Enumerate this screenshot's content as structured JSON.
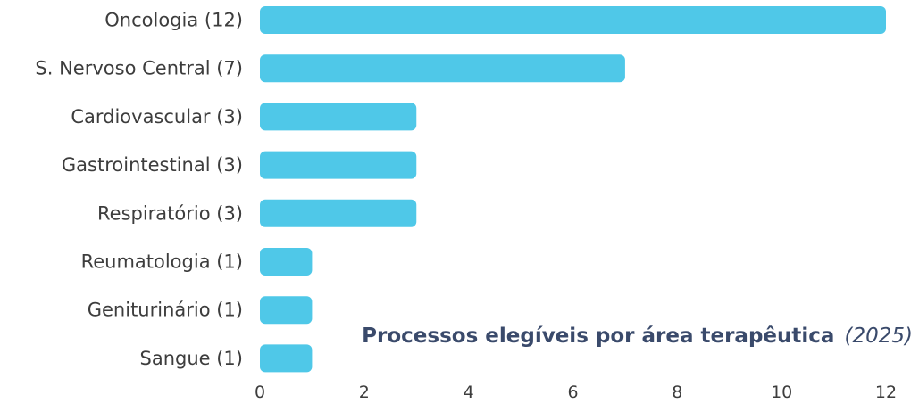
{
  "chart_data": {
    "type": "bar",
    "orientation": "horizontal",
    "title": "Processos elegíveis por área terapêutica",
    "title_year": "(2025)",
    "categories": [
      "Oncologia (12)",
      "S. Nervoso Central (7)",
      "Cardiovascular (3)",
      "Gastrointestinal (3)",
      "Respiratório (3)",
      "Reumatologia (1)",
      "Geniturinário (1)",
      "Sangue (1)"
    ],
    "values": [
      12,
      7,
      3,
      3,
      3,
      1,
      1,
      1
    ],
    "xlim": [
      0,
      12
    ],
    "xticks": [
      "0",
      "2",
      "4",
      "6",
      "8",
      "10",
      "12"
    ],
    "bar_color": "#4fc8e8",
    "title_color": "#3a4a6b",
    "grid": false,
    "legend": "none"
  }
}
